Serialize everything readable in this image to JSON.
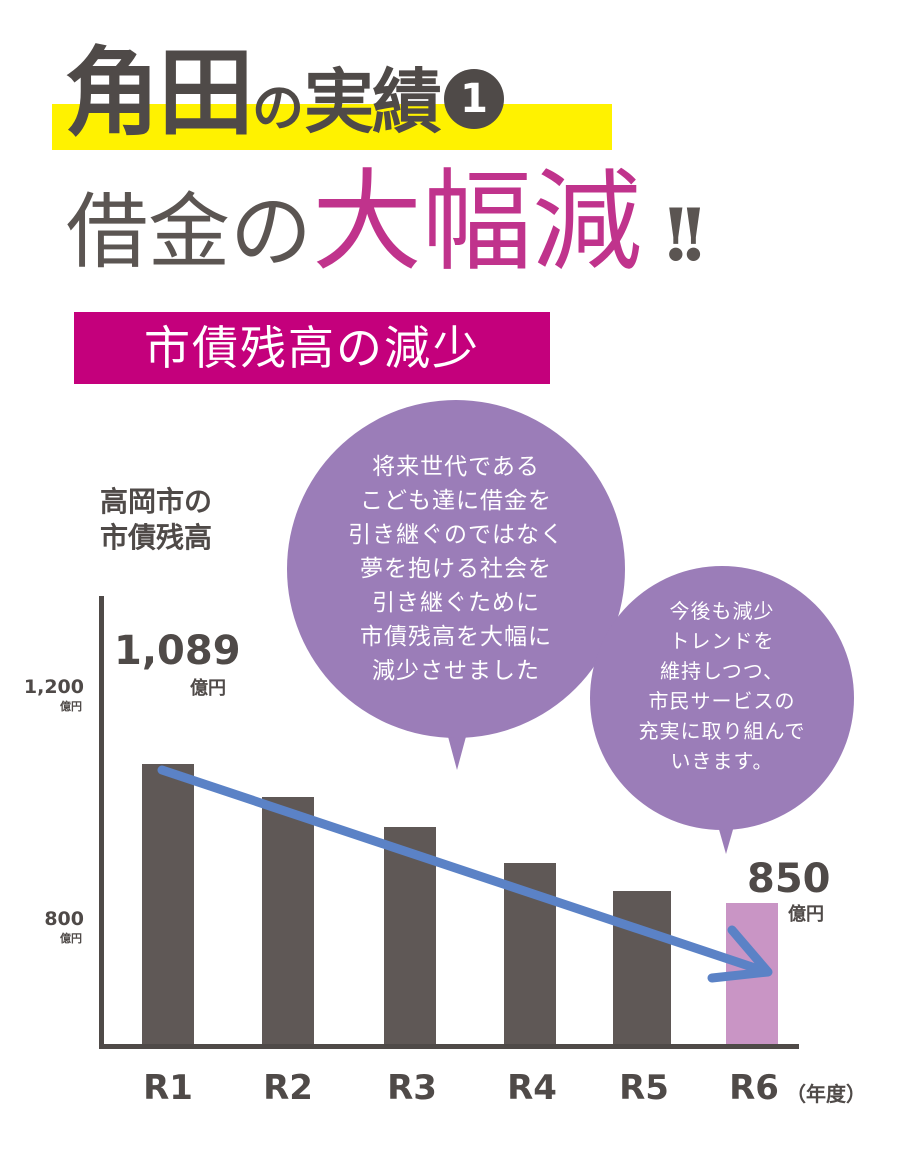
{
  "header": {
    "title1_a": "角田",
    "title1_b": "の",
    "title1_c": "実績",
    "title1_num": "1",
    "title2_a": "借金の",
    "title2_b": "大幅減",
    "title2_c": "!!",
    "tag": "市債残高の減少"
  },
  "bubbles": {
    "left": [
      "将来世代である",
      "こども達に借金を",
      "引き継ぐのではなく",
      "夢を抱ける社会を",
      "引き継ぐために",
      "市債残高を大幅に",
      "減少させました"
    ],
    "right": [
      "今後も減少",
      "トレンドを",
      "維持しつつ、",
      "市民サービスの",
      "充実に取り組んで",
      "いきます。"
    ]
  },
  "colors": {
    "bar": "#5f5856",
    "highlight_bar": "#c995c5",
    "trend_arrow": "#5b82c6",
    "bubble": "#9b7db8",
    "accent": "#c4007c"
  },
  "chart_data": {
    "type": "bar",
    "ylabel_lines": [
      "高岡市の",
      "市債残高"
    ],
    "categories": [
      "R1",
      "R2",
      "R3",
      "R4",
      "R5",
      "R6"
    ],
    "x_unit": "（年度）",
    "values": [
      1089,
      1032,
      981,
      919,
      870,
      850
    ],
    "highlighted_category": "R6",
    "y_ticks": [
      {
        "value": 1200,
        "label": "1,200",
        "unit": "億円"
      },
      {
        "value": 800,
        "label": "800",
        "unit": "億円"
      }
    ],
    "data_labels": [
      {
        "category": "R1",
        "value": "1,089",
        "unit": "億円"
      },
      {
        "category": "R6",
        "value": "850",
        "unit": "億円"
      }
    ],
    "trend": "decreasing",
    "grid": false,
    "legend": "none"
  }
}
